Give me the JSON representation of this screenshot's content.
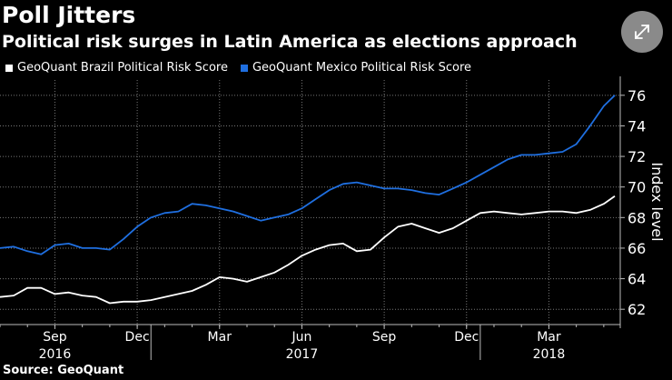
{
  "header": {
    "title": "Poll Jitters",
    "subtitle": "Political risk surges in Latin America as elections approach"
  },
  "footer": {
    "source": "Source: GeoQuant"
  },
  "colors": {
    "brazil": "#ffffff",
    "mexico": "#1f6fe0",
    "grid": "#777777",
    "axis": "#bbbbbb",
    "background": "#000000"
  },
  "icons": {
    "expand": "expand-arrows-icon"
  },
  "chart_data": {
    "type": "line",
    "title": "Political risk surges in Latin America as elections approach",
    "ylabel": "Index level",
    "ylim": [
      61,
      77
    ],
    "yticks": [
      62,
      64,
      66,
      68,
      70,
      72,
      74,
      76
    ],
    "grid": true,
    "legend": "top-left",
    "xlim": [
      0,
      22.6
    ],
    "xticks": [
      {
        "x": 2,
        "label": "Sep"
      },
      {
        "x": 5,
        "label": "Dec"
      },
      {
        "x": 8,
        "label": "Mar"
      },
      {
        "x": 11,
        "label": "Jun"
      },
      {
        "x": 14,
        "label": "Sep"
      },
      {
        "x": 17,
        "label": "Dec"
      },
      {
        "x": 20,
        "label": "Mar"
      }
    ],
    "year_labels": [
      {
        "x": 2,
        "label": "2016"
      },
      {
        "x": 11,
        "label": "2017"
      },
      {
        "x": 20,
        "label": "2018"
      }
    ],
    "year_dividers": [
      5.5,
      17.5
    ],
    "x_unit": "months since 2016-07",
    "series": [
      {
        "name": "GeoQuant Brazil Political Risk Score",
        "color": "#ffffff",
        "x": [
          0,
          0.5,
          1.0,
          1.5,
          2.0,
          2.5,
          3.0,
          3.5,
          4.0,
          4.5,
          5.0,
          5.5,
          6.0,
          6.5,
          7.0,
          7.5,
          8.0,
          8.5,
          9.0,
          9.5,
          10.0,
          10.5,
          11.0,
          11.5,
          12.0,
          12.5,
          13.0,
          13.5,
          14.0,
          14.5,
          15.0,
          15.5,
          16.0,
          16.5,
          17.0,
          17.5,
          18.0,
          18.5,
          19.0,
          19.5,
          20.0,
          20.5,
          21.0,
          21.5,
          22.0,
          22.4
        ],
        "values": [
          62.8,
          62.9,
          63.4,
          63.4,
          63.0,
          63.1,
          62.9,
          62.8,
          62.4,
          62.5,
          62.5,
          62.6,
          62.8,
          63.0,
          63.2,
          63.6,
          64.1,
          64.0,
          63.8,
          64.1,
          64.4,
          64.9,
          65.5,
          65.9,
          66.2,
          66.3,
          65.8,
          65.9,
          66.7,
          67.4,
          67.6,
          67.3,
          67.0,
          67.3,
          67.8,
          68.3,
          68.4,
          68.3,
          68.2,
          68.3,
          68.4,
          68.4,
          68.3,
          68.5,
          68.9,
          69.4
        ]
      },
      {
        "name": "GeoQuant Mexico Political Risk Score",
        "color": "#1f6fe0",
        "x": [
          0,
          0.5,
          1.0,
          1.5,
          2.0,
          2.5,
          3.0,
          3.5,
          4.0,
          4.5,
          5.0,
          5.5,
          6.0,
          6.5,
          7.0,
          7.5,
          8.0,
          8.5,
          9.0,
          9.5,
          10.0,
          10.5,
          11.0,
          11.5,
          12.0,
          12.5,
          13.0,
          13.5,
          14.0,
          14.5,
          15.0,
          15.5,
          16.0,
          16.5,
          17.0,
          17.5,
          18.0,
          18.5,
          19.0,
          19.5,
          20.0,
          20.5,
          21.0,
          21.5,
          22.0,
          22.4
        ],
        "values": [
          66.0,
          66.1,
          65.8,
          65.6,
          66.2,
          66.3,
          66.0,
          66.0,
          65.9,
          66.6,
          67.4,
          68.0,
          68.3,
          68.4,
          68.9,
          68.8,
          68.6,
          68.4,
          68.1,
          67.8,
          68.0,
          68.2,
          68.6,
          69.2,
          69.8,
          70.2,
          70.3,
          70.1,
          69.9,
          69.9,
          69.8,
          69.6,
          69.5,
          69.9,
          70.3,
          70.8,
          71.3,
          71.8,
          72.1,
          72.1,
          72.2,
          72.3,
          72.8,
          74.0,
          75.3,
          76.0
        ]
      }
    ]
  }
}
